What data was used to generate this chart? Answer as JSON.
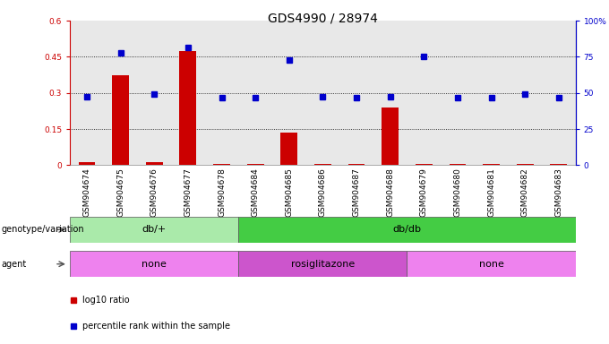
{
  "title": "GDS4990 / 28974",
  "samples": [
    "GSM904674",
    "GSM904675",
    "GSM904676",
    "GSM904677",
    "GSM904678",
    "GSM904684",
    "GSM904685",
    "GSM904686",
    "GSM904687",
    "GSM904688",
    "GSM904679",
    "GSM904680",
    "GSM904681",
    "GSM904682",
    "GSM904683"
  ],
  "log10_ratio": [
    0.012,
    0.375,
    0.012,
    0.475,
    0.005,
    0.005,
    0.135,
    0.005,
    0.005,
    0.24,
    0.005,
    0.005,
    0.005,
    0.005,
    0.005
  ],
  "percentile_rank": [
    47.5,
    77.5,
    49.0,
    81.5,
    47.0,
    47.0,
    72.5,
    47.5,
    46.5,
    47.5,
    75.5,
    47.0,
    47.0,
    49.0,
    47.0
  ],
  "ylim_left": [
    0,
    0.6
  ],
  "ylim_right": [
    0,
    100
  ],
  "yticks_left": [
    0,
    0.15,
    0.3,
    0.45,
    0.6
  ],
  "ytick_labels_left": [
    "0",
    "0.15",
    "0.3",
    "0.45",
    "0.6"
  ],
  "yticks_right": [
    0,
    25,
    50,
    75,
    100
  ],
  "ytick_labels_right": [
    "0",
    "25",
    "50",
    "75",
    "100%"
  ],
  "bar_color": "#cc0000",
  "dot_color": "#0000cc",
  "plot_bg": "#e8e8e8",
  "genotype_groups": [
    {
      "label": "db/+",
      "start": 0,
      "end": 5,
      "color": "#aaeaaa"
    },
    {
      "label": "db/db",
      "start": 5,
      "end": 15,
      "color": "#44cc44"
    }
  ],
  "agent_groups": [
    {
      "label": "none",
      "start": 0,
      "end": 5,
      "color": "#ee82ee"
    },
    {
      "label": "rosiglitazone",
      "start": 5,
      "end": 10,
      "color": "#cc55cc"
    },
    {
      "label": "none",
      "start": 10,
      "end": 15,
      "color": "#ee82ee"
    }
  ],
  "legend_items": [
    {
      "color": "#cc0000",
      "label": "log10 ratio"
    },
    {
      "color": "#0000cc",
      "label": "percentile rank within the sample"
    }
  ],
  "title_fontsize": 10,
  "tick_fontsize": 6.5,
  "label_fontsize": 8,
  "row_label_fontsize": 7,
  "legend_fontsize": 7
}
